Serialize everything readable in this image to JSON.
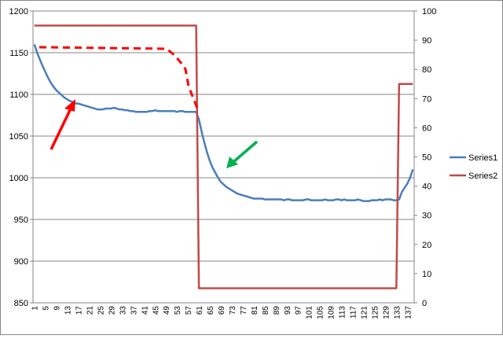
{
  "chart_data": {
    "type": "line",
    "categories": [
      1,
      null,
      null,
      null,
      5,
      null,
      null,
      null,
      9,
      null,
      null,
      null,
      13,
      null,
      null,
      null,
      17,
      null,
      null,
      null,
      21,
      null,
      null,
      null,
      25,
      null,
      null,
      null,
      29,
      null,
      null,
      null,
      33,
      null,
      null,
      null,
      37,
      null,
      null,
      null,
      41,
      null,
      null,
      null,
      45,
      null,
      null,
      null,
      49,
      null,
      null,
      null,
      53,
      null,
      null,
      null,
      57,
      null,
      null,
      null,
      61,
      null,
      null,
      null,
      65,
      null,
      null,
      null,
      69,
      null,
      null,
      null,
      73,
      null,
      null,
      null,
      77,
      null,
      null,
      null,
      81,
      null,
      null,
      null,
      85,
      null,
      null,
      null,
      89,
      null,
      null,
      null,
      93,
      null,
      null,
      null,
      97,
      null,
      null,
      null,
      101,
      null,
      null,
      null,
      105,
      null,
      null,
      null,
      109,
      null,
      null,
      null,
      113,
      null,
      null,
      null,
      117,
      null,
      null,
      null,
      121,
      null,
      null,
      null,
      125,
      null,
      null,
      null,
      129,
      null,
      null,
      null,
      133,
      null,
      null,
      null,
      137,
      null,
      null
    ],
    "series": [
      {
        "name": "Series1",
        "color": "#4a7ebb",
        "values": [
          1160,
          1150,
          1142,
          1134,
          1127,
          1120,
          1114,
          1109,
          1105,
          1102,
          1099,
          1096,
          1094,
          1092,
          1091,
          1089,
          1089,
          1088,
          1087,
          1086,
          1085,
          1084,
          1083,
          1082,
          1082,
          1082,
          1083,
          1083,
          1083,
          1084,
          1083,
          1082,
          1082,
          1081,
          1081,
          1080,
          1080,
          1079,
          1079,
          1079,
          1079,
          1079,
          1080,
          1080,
          1081,
          1080,
          1080,
          1080,
          1080,
          1080,
          1080,
          1080,
          1079,
          1080,
          1080,
          1079,
          1079,
          1079,
          1079,
          1079,
          1070,
          1055,
          1042,
          1030,
          1020,
          1012,
          1006,
          1000,
          995,
          992,
          989,
          987,
          985,
          983,
          981,
          980,
          979,
          978,
          977,
          976,
          975,
          975,
          975,
          975,
          974,
          974,
          974,
          974,
          974,
          974,
          974,
          973,
          974,
          974,
          973,
          973,
          973,
          973,
          973,
          974,
          974,
          973,
          973,
          973,
          973,
          973,
          974,
          973,
          973,
          973,
          974,
          974,
          973,
          974,
          973,
          973,
          973,
          973,
          974,
          973,
          972,
          972,
          972,
          973,
          973,
          973,
          974,
          973,
          974,
          974,
          974,
          973,
          973,
          974,
          983,
          988,
          993,
          1000,
          1010
        ]
      },
      {
        "name": "Series2",
        "color": "#be4b48",
        "axis": "y2",
        "values": [
          95,
          95,
          95,
          95,
          95,
          95,
          95,
          95,
          95,
          95,
          95,
          95,
          95,
          95,
          95,
          95,
          95,
          95,
          95,
          95,
          95,
          95,
          95,
          95,
          95,
          95,
          95,
          95,
          95,
          95,
          95,
          95,
          95,
          95,
          95,
          95,
          95,
          95,
          95,
          95,
          95,
          95,
          95,
          95,
          95,
          95,
          95,
          95,
          95,
          95,
          95,
          95,
          95,
          95,
          95,
          95,
          95,
          95,
          95,
          95,
          5,
          5,
          5,
          5,
          5,
          5,
          5,
          5,
          5,
          5,
          5,
          5,
          5,
          5,
          5,
          5,
          5,
          5,
          5,
          5,
          5,
          5,
          5,
          5,
          5,
          5,
          5,
          5,
          5,
          5,
          5,
          5,
          5,
          5,
          5,
          5,
          5,
          5,
          5,
          5,
          5,
          5,
          5,
          5,
          5,
          5,
          5,
          5,
          5,
          5,
          5,
          5,
          5,
          5,
          5,
          5,
          5,
          5,
          5,
          5,
          5,
          5,
          5,
          5,
          5,
          5,
          5,
          5,
          5,
          5,
          5,
          5,
          5,
          75,
          75,
          75,
          75,
          75,
          75
        ]
      }
    ],
    "ylim": [
      850,
      1200
    ],
    "yticks": [
      850,
      900,
      950,
      1000,
      1050,
      1100,
      1150,
      1200
    ],
    "y2lim": [
      0,
      100
    ],
    "y2ticks": [
      0,
      10,
      20,
      30,
      40,
      50,
      60,
      70,
      80,
      90,
      100
    ],
    "grid": true,
    "legend": "right"
  }
}
